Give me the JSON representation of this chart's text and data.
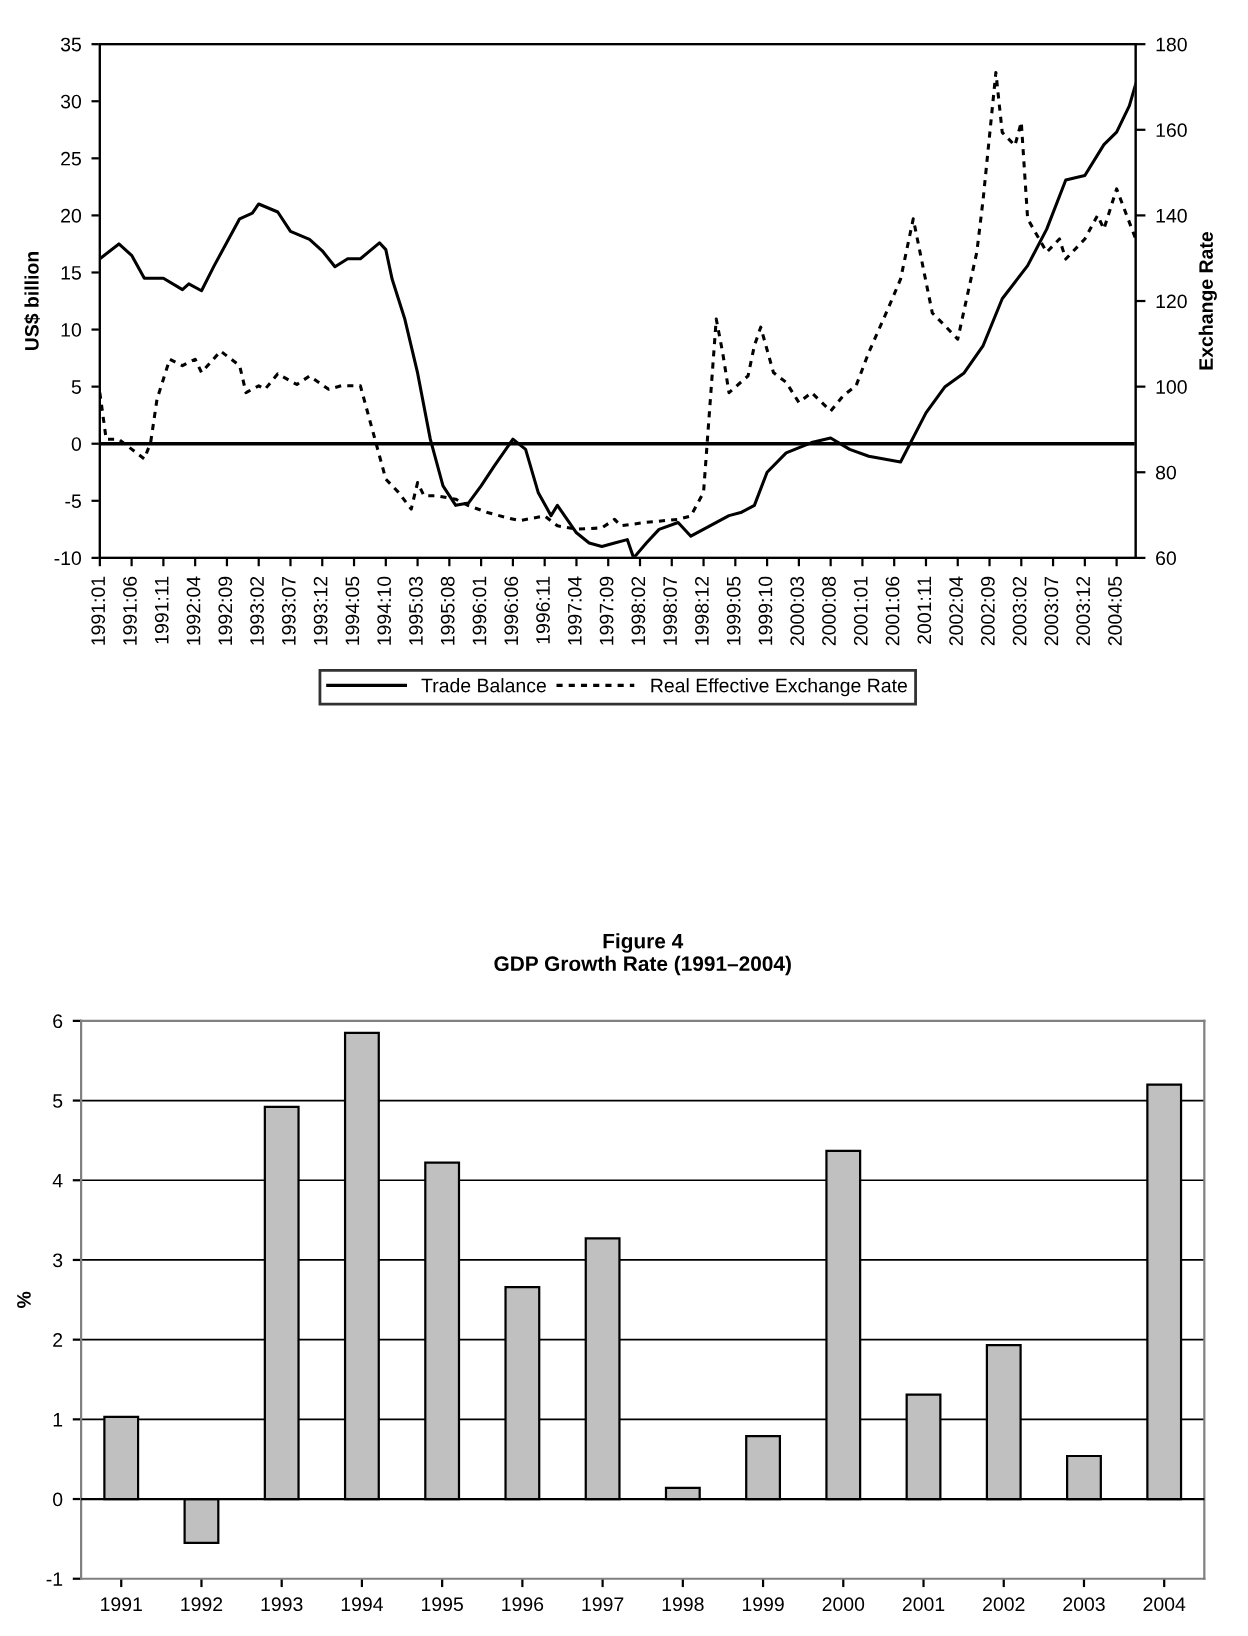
{
  "chart_data": [
    {
      "type": "line",
      "ylabel": "US$ billion",
      "y2label": "Exchange Rate",
      "xlim": [
        "1991-01",
        "2004-08"
      ],
      "ylim": [
        -10,
        35
      ],
      "yticks": [
        -10,
        -5,
        0,
        5,
        10,
        15,
        20,
        25,
        30,
        35
      ],
      "y2lim": [
        60,
        180
      ],
      "y2ticks": [
        60,
        80,
        100,
        120,
        140,
        160,
        180
      ],
      "xticks": [
        {
          "value": "1991-01",
          "label": "1991:01"
        },
        {
          "value": "1991-06",
          "label": "1991:06"
        },
        {
          "value": "1991-11",
          "label": "1991:11"
        },
        {
          "value": "1992-04",
          "label": "1992:04"
        },
        {
          "value": "1992-09",
          "label": "1992:09"
        },
        {
          "value": "1993-02",
          "label": "1993:02"
        },
        {
          "value": "1993-07",
          "label": "1993:07"
        },
        {
          "value": "1993-12",
          "label": "1993:12"
        },
        {
          "value": "1994-05",
          "label": "1994:05"
        },
        {
          "value": "1994-10",
          "label": "1994:10"
        },
        {
          "value": "1995-03",
          "label": "1995:03"
        },
        {
          "value": "1995-08",
          "label": "1995:08"
        },
        {
          "value": "1996-01",
          "label": "1996:01"
        },
        {
          "value": "1996-06",
          "label": "1996:06"
        },
        {
          "value": "1996-11",
          "label": "1996:11"
        },
        {
          "value": "1997-04",
          "label": "1997:04"
        },
        {
          "value": "1997-09",
          "label": "1997:09"
        },
        {
          "value": "1998-02",
          "label": "1998:02"
        },
        {
          "value": "1998-07",
          "label": "1998:07"
        },
        {
          "value": "1998-12",
          "label": "1998:12"
        },
        {
          "value": "1999-05",
          "label": "1999:05"
        },
        {
          "value": "1999-10",
          "label": "1999:10"
        },
        {
          "value": "2000-03",
          "label": "2000:03"
        },
        {
          "value": "2000-08",
          "label": "2000:08"
        },
        {
          "value": "2001-01",
          "label": "2001:01"
        },
        {
          "value": "2001-06",
          "label": "2001:06"
        },
        {
          "value": "2001-11",
          "label": "2001:11"
        },
        {
          "value": "2002-04",
          "label": "2002:04"
        },
        {
          "value": "2002-09",
          "label": "2002:09"
        },
        {
          "value": "2003-02",
          "label": "2003:02"
        },
        {
          "value": "2003-07",
          "label": "2003:07"
        },
        {
          "value": "2003-12",
          "label": "2003:12"
        },
        {
          "value": "2004-05",
          "label": "2004:05"
        }
      ],
      "ref_lines": [
        {
          "axis": "y",
          "value": 0,
          "color": "#000000"
        }
      ],
      "legend": "bottom",
      "grid": false,
      "series": [
        {
          "name": "Trade Balance",
          "color": "#000000",
          "line_style": "solid",
          "x": [
            "1991-01",
            "1991-04",
            "1991-06",
            "1991-08",
            "1991-11",
            "1992-02",
            "1992-03",
            "1992-05",
            "1992-07",
            "1992-11",
            "1993-01",
            "1993-02",
            "1993-05",
            "1993-07",
            "1993-10",
            "1993-12",
            "1994-02",
            "1994-04",
            "1994-06",
            "1994-09",
            "1994-10",
            "1994-11",
            "1995-01",
            "1995-03",
            "1995-05",
            "1995-07",
            "1995-09",
            "1995-11",
            "1996-01",
            "1996-03",
            "1996-06",
            "1996-08",
            "1996-10",
            "1996-12",
            "1997-01",
            "1997-04",
            "1997-06",
            "1997-08",
            "1997-10",
            "1997-12",
            "1998-01",
            "1998-03",
            "1998-05",
            "1998-08",
            "1998-10",
            "1999-01",
            "1999-04",
            "1999-06",
            "1999-08",
            "1999-10",
            "2000-01",
            "2000-05",
            "2000-08",
            "2000-11",
            "2001-02",
            "2001-07",
            "2001-11",
            "2002-02",
            "2002-05",
            "2002-08",
            "2002-11",
            "2003-03",
            "2003-06",
            "2003-09",
            "2003-12",
            "2004-03",
            "2004-05",
            "2004-07",
            "2004-08"
          ],
          "values": [
            16.2,
            17.5,
            16.5,
            14.5,
            14.5,
            13.5,
            14.0,
            13.4,
            15.6,
            19.7,
            20.2,
            21.0,
            20.3,
            18.6,
            17.9,
            16.9,
            15.5,
            16.2,
            16.2,
            17.6,
            17.0,
            14.4,
            10.9,
            6.2,
            0.4,
            -3.7,
            -5.4,
            -5.2,
            -3.7,
            -2.0,
            0.4,
            -0.5,
            -4.3,
            -6.3,
            -5.4,
            -7.8,
            -8.7,
            -9.0,
            -8.7,
            -8.4,
            -10.0,
            -8.7,
            -7.5,
            -6.9,
            -8.1,
            -7.2,
            -6.3,
            -6.0,
            -5.4,
            -2.5,
            -0.8,
            0.1,
            0.5,
            -0.5,
            -1.1,
            -1.6,
            2.7,
            5.0,
            6.2,
            8.6,
            12.7,
            15.6,
            18.8,
            23.1,
            23.5,
            26.2,
            27.3,
            29.6,
            31.5
          ]
        },
        {
          "name": "Real Effective Exchange Rate",
          "color": "#000000",
          "line_style": "dotted",
          "axis": "y2",
          "x": [
            "1991-01",
            "1991-02",
            "1991-04",
            "1991-06",
            "1991-08",
            "1991-09",
            "1991-10",
            "1991-12",
            "1992-02",
            "1992-04",
            "1992-05",
            "1992-08",
            "1992-11",
            "1992-12",
            "1993-02",
            "1993-03",
            "1993-05",
            "1993-08",
            "1993-10",
            "1994-01",
            "1994-03",
            "1994-06",
            "1994-08",
            "1994-10",
            "1994-12",
            "1995-02",
            "1995-03",
            "1995-04",
            "1995-06",
            "1995-09",
            "1995-11",
            "1996-02",
            "1996-05",
            "1996-07",
            "1996-11",
            "1997-01",
            "1997-04",
            "1997-08",
            "1997-10",
            "1997-11",
            "1998-03",
            "1998-08",
            "1998-10",
            "1998-12",
            "1999-02",
            "1999-03",
            "1999-04",
            "1999-07",
            "1999-08",
            "1999-09",
            "1999-11",
            "2000-01",
            "2000-03",
            "2000-05",
            "2000-08",
            "2000-10",
            "2000-12",
            "2001-02",
            "2001-05",
            "2001-07",
            "2001-09",
            "2001-12",
            "2002-02",
            "2002-04",
            "2002-07",
            "2002-08",
            "2002-10",
            "2002-11",
            "2003-01",
            "2003-02",
            "2003-03",
            "2003-06",
            "2003-08",
            "2003-09",
            "2003-12",
            "2004-02",
            "2004-03",
            "2004-05",
            "2004-08"
          ],
          "values": [
            98.6,
            87.7,
            87.7,
            85.4,
            83.1,
            87.0,
            97.1,
            106.4,
            104.9,
            106.4,
            103.3,
            108.3,
            104.9,
            98.6,
            100.2,
            99.4,
            103.0,
            100.5,
            102.5,
            99.4,
            100.2,
            100.2,
            89.3,
            78.4,
            75.3,
            71.4,
            77.6,
            74.5,
            74.5,
            73.7,
            72.2,
            70.6,
            69.4,
            68.7,
            69.8,
            67.5,
            66.7,
            67.0,
            69.0,
            67.5,
            68.3,
            69.0,
            69.8,
            75.3,
            115.8,
            108.0,
            98.6,
            102.5,
            109.6,
            113.9,
            103.3,
            101.0,
            96.3,
            98.6,
            94.3,
            97.9,
            100.2,
            108.0,
            118.1,
            125.1,
            139.2,
            117.2,
            114.2,
            111.1,
            131.4,
            143.8,
            173.4,
            159.4,
            156.3,
            161.8,
            139.2,
            131.4,
            134.5,
            129.8,
            134.5,
            140.0,
            136.8,
            146.2,
            134.5
          ]
        }
      ]
    },
    {
      "type": "bar",
      "title": "Figure 4\nGDP Growth Rate (1991–2004)",
      "ylabel": "%",
      "categories": [
        "1991",
        "1992",
        "1993",
        "1994",
        "1995",
        "1996",
        "1997",
        "1998",
        "1999",
        "2000",
        "2001",
        "2002",
        "2003",
        "2004"
      ],
      "values": [
        1.03,
        -0.55,
        4.92,
        5.85,
        4.22,
        2.66,
        3.27,
        0.14,
        0.79,
        4.37,
        1.31,
        1.93,
        0.54,
        5.2
      ],
      "color": "#c0c0c0",
      "ylim": [
        -1,
        6
      ],
      "yticks": [
        -1,
        0,
        1,
        2,
        3,
        4,
        5,
        6
      ],
      "grid": "y",
      "legend": false
    }
  ]
}
